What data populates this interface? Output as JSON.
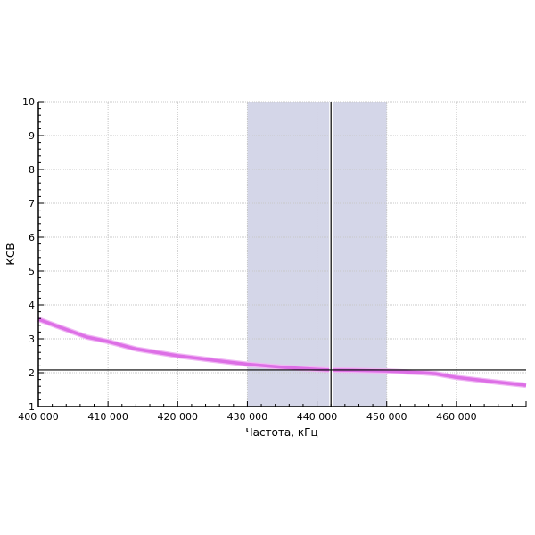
{
  "chart_data": {
    "type": "line",
    "title": "",
    "xlabel": "Частота, кГц",
    "ylabel": "КСВ",
    "xlim": [
      400000,
      470000
    ],
    "ylim": [
      1,
      10
    ],
    "grid": true,
    "x_ticks": [
      400000,
      410000,
      420000,
      430000,
      440000,
      450000,
      460000
    ],
    "x_tick_labels": [
      "400 000",
      "410 000",
      "420 000",
      "430 000",
      "440 000",
      "450 000",
      "460 000"
    ],
    "y_ticks": [
      1,
      2,
      3,
      4,
      5,
      6,
      7,
      8,
      9,
      10
    ],
    "y_tick_labels": [
      "1",
      "2",
      "3",
      "4",
      "5",
      "6",
      "7",
      "8",
      "9",
      "10"
    ],
    "shaded_band": {
      "x_from": 430000,
      "x_to": 450000,
      "color": "#d4d6e8"
    },
    "marker_vertical_x": 442000,
    "marker_horizontal_y": 2.08,
    "series": [
      {
        "color": "#dd6fe6",
        "x": [
          400000,
          403000,
          407000,
          410000,
          414000,
          420000,
          425000,
          430000,
          435000,
          440000,
          442000,
          445000,
          450000,
          455000,
          457000,
          460000,
          465000,
          470000
        ],
        "y": [
          3.58,
          3.35,
          3.05,
          2.92,
          2.7,
          2.5,
          2.37,
          2.25,
          2.16,
          2.1,
          2.08,
          2.07,
          2.05,
          2.0,
          1.97,
          1.86,
          1.74,
          1.63
        ]
      }
    ]
  }
}
